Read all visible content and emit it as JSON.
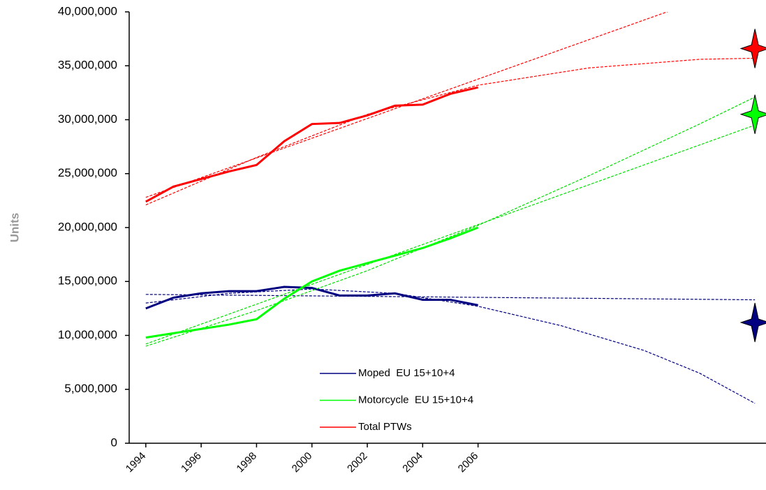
{
  "chart_data": {
    "type": "line",
    "y_label": "Units",
    "xlim": [
      1993.4,
      2016.4
    ],
    "xticks": [
      1994,
      1996,
      1998,
      2000,
      2002,
      2004,
      2006
    ],
    "ylim": [
      0,
      40000000
    ],
    "yticks": [
      0,
      {
        "value": 5000000,
        "label": "5,000,000"
      },
      {
        "value": 10000000,
        "label": "10,000,000"
      },
      {
        "value": 15000000,
        "label": "15,000,000"
      },
      {
        "value": 20000000,
        "label": "20,000,000"
      },
      {
        "value": 25000000,
        "label": "25,000,000"
      },
      {
        "value": 30000000,
        "label": "30,000,000"
      },
      {
        "value": 35000000,
        "label": "35,000,000"
      },
      {
        "value": 40000000,
        "label": "40,000,000"
      }
    ],
    "x": [
      1994,
      1995,
      1996,
      1997,
      1998,
      1999,
      2000,
      2001,
      2002,
      2003,
      2004,
      2005,
      2006
    ],
    "legend": "lower center",
    "series": [
      {
        "name": "Moped  EU 15+10+4",
        "color": "#000080",
        "values": [
          12500000,
          13500000,
          13900000,
          14100000,
          14100000,
          14500000,
          14400000,
          13700000,
          13700000,
          13900000,
          13300000,
          13300000,
          12800000
        ],
        "trendlines": [
          {
            "color": "#000080",
            "x": [
              1994,
              2016
            ],
            "values": [
              13800000,
              13300000
            ]
          },
          {
            "color": "#000080",
            "x": [
              1994,
              1997,
              2000,
              2003,
              2006,
              2009,
              2012,
              2014,
              2016
            ],
            "values": [
              13000000,
              13900000,
              14300000,
              13900000,
              12700000,
              10900000,
              8600000,
              6500000,
              3700000
            ]
          }
        ],
        "forecast": {
          "x": 2016,
          "value": 11200000
        }
      },
      {
        "name": "Motorcycle  EU 15+10+4",
        "color": "#00ff00",
        "values": [
          9800000,
          10200000,
          10600000,
          11000000,
          11500000,
          13400000,
          15000000,
          16000000,
          16700000,
          17400000,
          18100000,
          19000000,
          20000000
        ],
        "trendlines": [
          {
            "color": "#00dd00",
            "x": [
              1994,
              2016
            ],
            "values": [
              9200000,
              29500000
            ]
          },
          {
            "color": "#00dd00",
            "x": [
              1994,
              1998,
              2002,
              2006,
              2010,
              2014,
              2016
            ],
            "values": [
              9000000,
              12300000,
              16000000,
              20200000,
              24800000,
              29600000,
              32100000
            ]
          }
        ],
        "forecast": {
          "x": 2016,
          "value": 30500000
        }
      },
      {
        "name": "Total PTWs",
        "color": "#ff0000",
        "values": [
          22400000,
          23800000,
          24500000,
          25200000,
          25800000,
          28000000,
          29600000,
          29700000,
          30400000,
          31300000,
          31400000,
          32400000,
          33000000
        ],
        "trendlines": [
          {
            "color": "#ff0000",
            "x": [
              1994,
              2016
            ],
            "values": [
              22800000,
              42900000
            ]
          },
          {
            "color": "#ff0000",
            "x": [
              1994,
              1998,
              2002,
              2006,
              2010,
              2014,
              2016
            ],
            "values": [
              22100000,
              26500000,
              30500000,
              33200000,
              34800000,
              35600000,
              35700000
            ]
          }
        ],
        "forecast": {
          "x": 2016,
          "value": 36600000
        }
      }
    ]
  }
}
